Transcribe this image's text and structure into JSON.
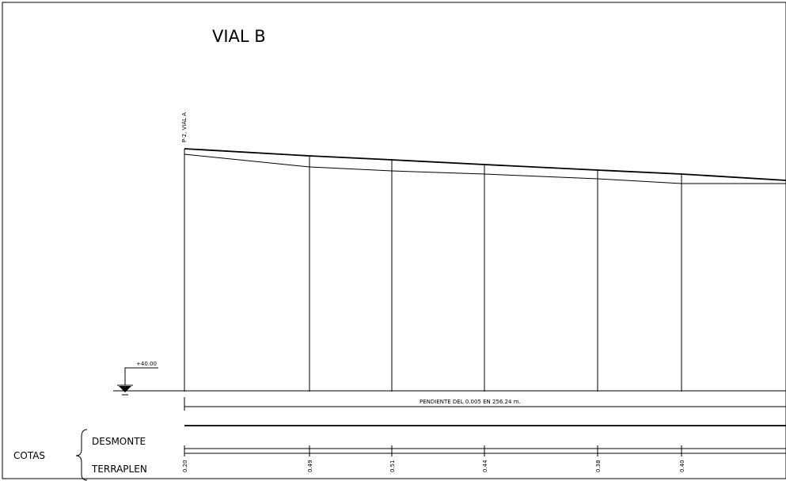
{
  "title": "VIAL B",
  "station_label": "P-2, VIAL A",
  "reference_level": "+40.00",
  "slope_note": "PENDIENTE DEL 0.005 EN 256.24 m.",
  "legend": {
    "group": "COTAS",
    "row1": "DESMONTE",
    "row2": "TERRAPLEN"
  },
  "profile": {
    "stations": [
      {
        "id": "s0",
        "cut_fill": "0.20"
      },
      {
        "id": "s1",
        "cut_fill": "0.49"
      },
      {
        "id": "s2",
        "cut_fill": "0.51"
      },
      {
        "id": "s3",
        "cut_fill": "0.44"
      },
      {
        "id": "s4",
        "cut_fill": "0.38"
      },
      {
        "id": "s5",
        "cut_fill": "0.40"
      }
    ]
  }
}
